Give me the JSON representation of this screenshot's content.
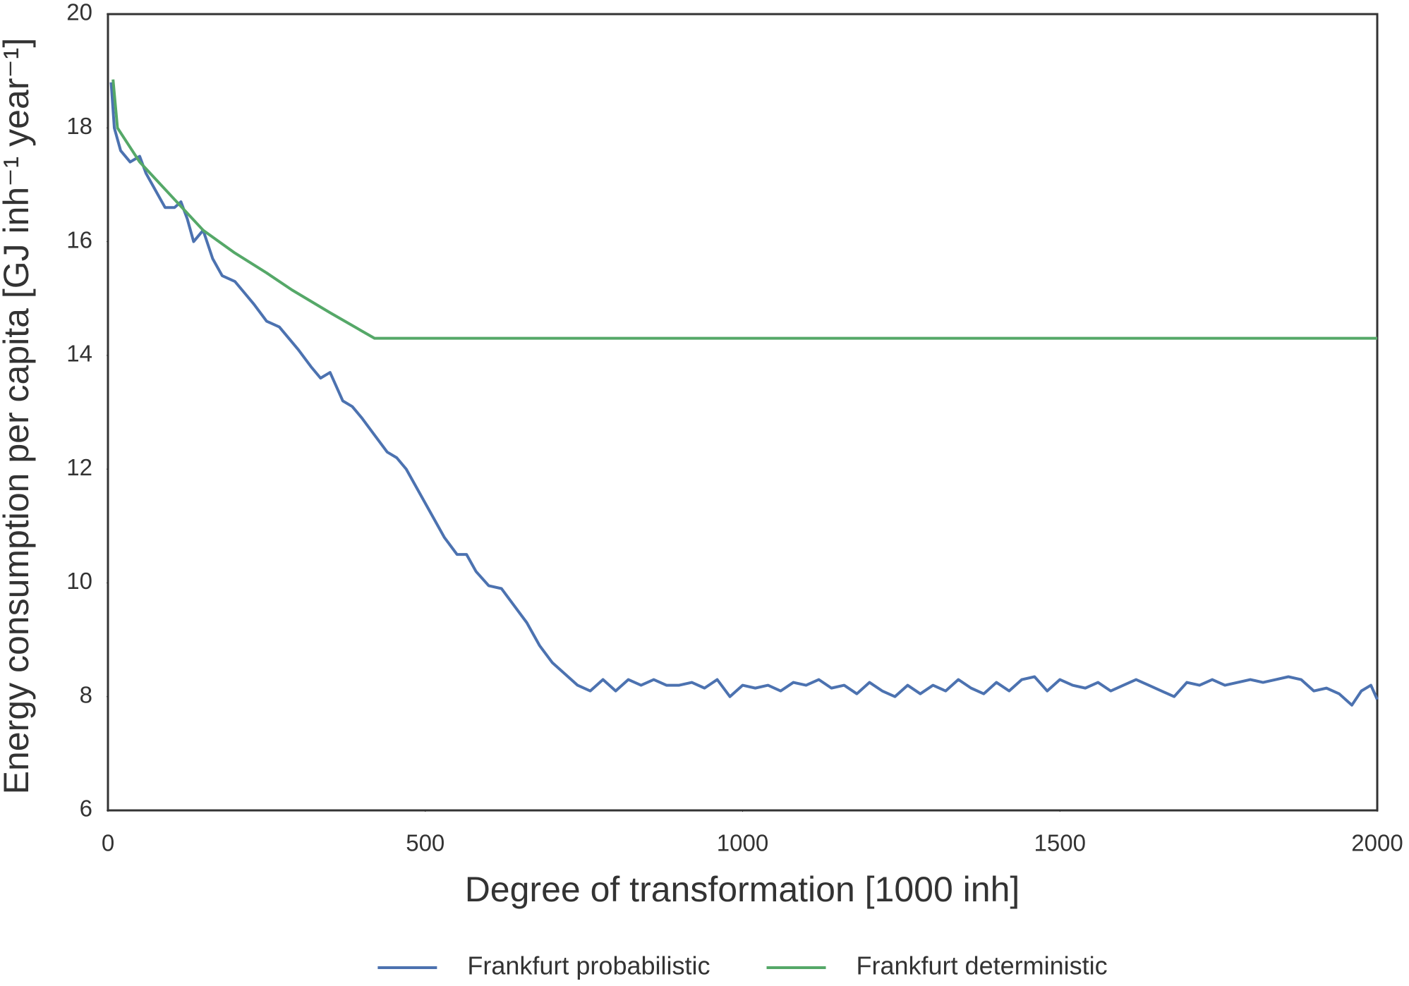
{
  "chart_data": {
    "type": "line",
    "xlabel": "Degree of transformation [1000 inh]",
    "ylabel": "Energy consumption per capita  [GJ inh⁻¹ year⁻¹]",
    "xlim": [
      0,
      2000
    ],
    "ylim": [
      6,
      20
    ],
    "xticks": [
      0,
      500,
      1000,
      1500,
      2000
    ],
    "yticks": [
      6,
      8,
      10,
      12,
      14,
      16,
      18,
      20
    ],
    "grid": false,
    "legend": "bottom",
    "series": [
      {
        "name": "Frankfurt probabilistic",
        "color": "#4c72b0",
        "x": [
          5,
          10,
          20,
          35,
          50,
          60,
          75,
          90,
          105,
          115,
          125,
          135,
          150,
          165,
          180,
          200,
          215,
          230,
          250,
          270,
          285,
          300,
          320,
          335,
          350,
          370,
          385,
          400,
          420,
          440,
          455,
          470,
          490,
          510,
          530,
          550,
          565,
          580,
          600,
          620,
          640,
          660,
          680,
          700,
          720,
          740,
          760,
          780,
          800,
          820,
          840,
          860,
          880,
          900,
          920,
          940,
          960,
          980,
          1000,
          1020,
          1040,
          1060,
          1080,
          1100,
          1120,
          1140,
          1160,
          1180,
          1200,
          1220,
          1240,
          1260,
          1280,
          1300,
          1320,
          1340,
          1360,
          1380,
          1400,
          1420,
          1440,
          1460,
          1480,
          1500,
          1520,
          1540,
          1560,
          1580,
          1600,
          1620,
          1640,
          1660,
          1680,
          1700,
          1720,
          1740,
          1760,
          1780,
          1800,
          1820,
          1840,
          1860,
          1880,
          1900,
          1920,
          1940,
          1960,
          1975,
          1990,
          2000
        ],
        "values": [
          18.8,
          18.0,
          17.6,
          17.4,
          17.5,
          17.2,
          16.9,
          16.6,
          16.6,
          16.7,
          16.4,
          16.0,
          16.2,
          15.7,
          15.4,
          15.3,
          15.1,
          14.9,
          14.6,
          14.5,
          14.3,
          14.1,
          13.8,
          13.6,
          13.7,
          13.2,
          13.1,
          12.9,
          12.6,
          12.3,
          12.2,
          12.0,
          11.6,
          11.2,
          10.8,
          10.5,
          10.5,
          10.2,
          9.95,
          9.9,
          9.6,
          9.3,
          8.9,
          8.6,
          8.4,
          8.2,
          8.1,
          8.3,
          8.1,
          8.3,
          8.2,
          8.3,
          8.2,
          8.2,
          8.25,
          8.15,
          8.3,
          8.0,
          8.2,
          8.15,
          8.2,
          8.1,
          8.25,
          8.2,
          8.3,
          8.15,
          8.2,
          8.05,
          8.25,
          8.1,
          8.0,
          8.2,
          8.05,
          8.2,
          8.1,
          8.3,
          8.15,
          8.05,
          8.25,
          8.1,
          8.3,
          8.35,
          8.1,
          8.3,
          8.2,
          8.15,
          8.25,
          8.1,
          8.2,
          8.3,
          8.2,
          8.1,
          8.0,
          8.25,
          8.2,
          8.3,
          8.2,
          8.25,
          8.3,
          8.25,
          8.3,
          8.35,
          8.3,
          8.1,
          8.15,
          8.05,
          7.85,
          8.1,
          8.2,
          7.95
        ]
      },
      {
        "name": "Frankfurt deterministic",
        "color": "#55a868",
        "x": [
          8,
          15,
          50,
          100,
          150,
          200,
          250,
          290,
          350,
          420,
          2000
        ],
        "values": [
          18.85,
          18.0,
          17.4,
          16.8,
          16.2,
          15.8,
          15.45,
          15.15,
          14.75,
          14.3,
          14.3
        ]
      }
    ]
  }
}
